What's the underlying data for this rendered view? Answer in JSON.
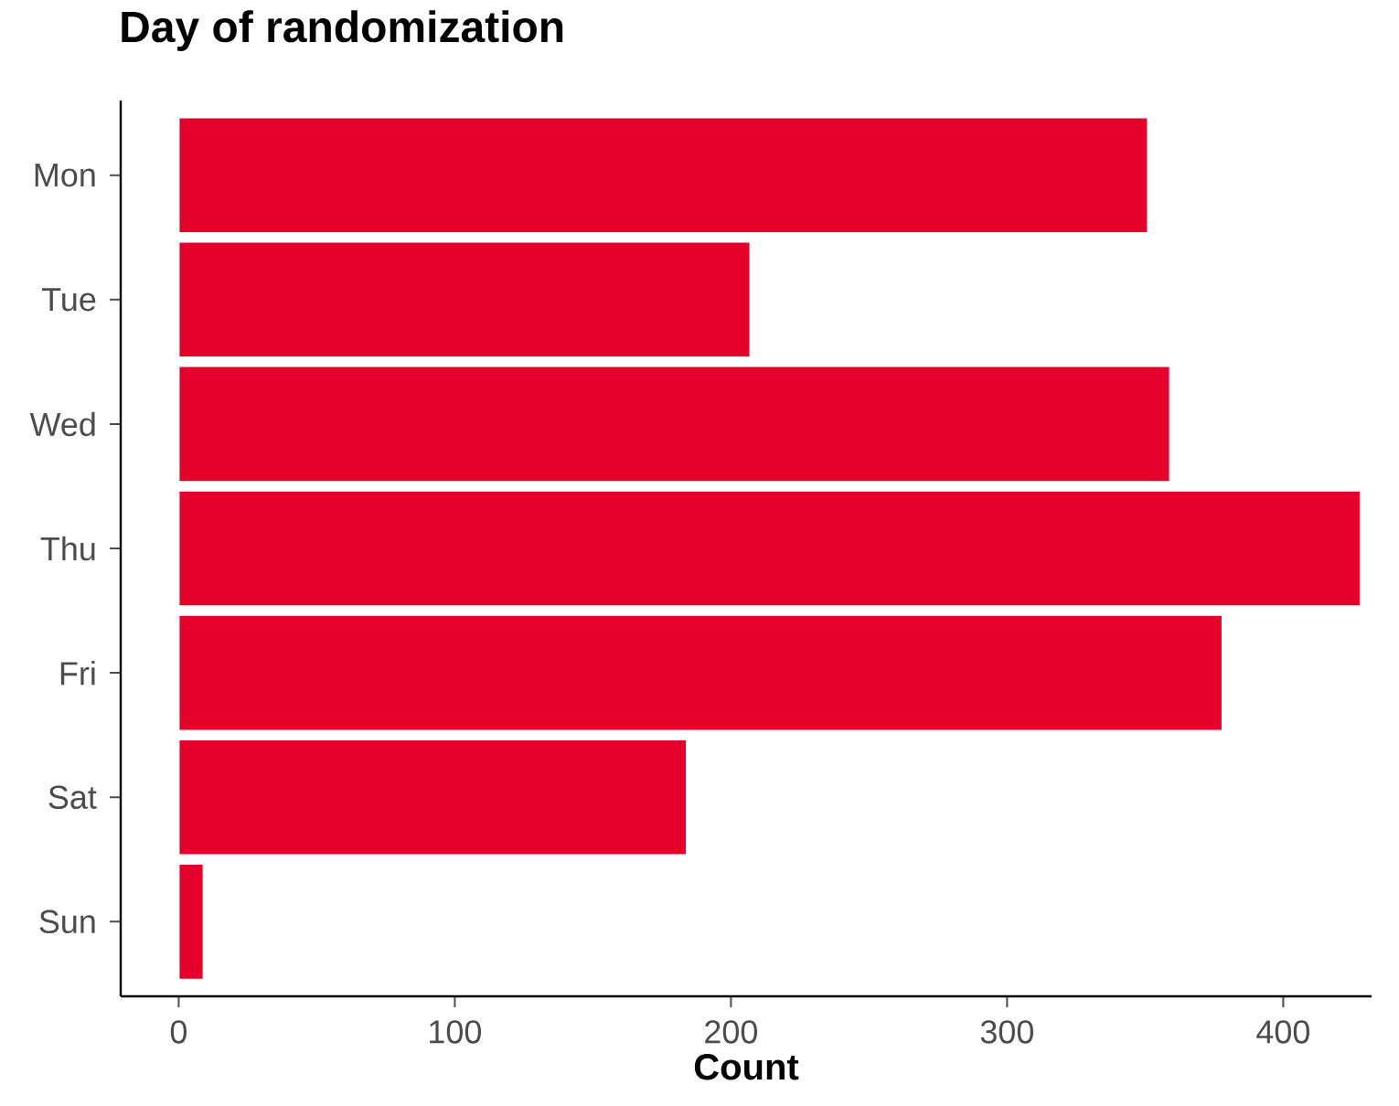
{
  "chart_data": {
    "type": "bar",
    "orientation": "horizontal",
    "title": "Day of randomization",
    "xlabel": "Count",
    "categories": [
      "Mon",
      "Tue",
      "Wed",
      "Thu",
      "Fri",
      "Sat",
      "Sun"
    ],
    "values": [
      351,
      207,
      359,
      428,
      378,
      184,
      9
    ],
    "color": "#e4002b",
    "xlim": [
      -21,
      432
    ],
    "xticks": [
      0,
      100,
      200,
      300,
      400
    ],
    "grid": false
  }
}
